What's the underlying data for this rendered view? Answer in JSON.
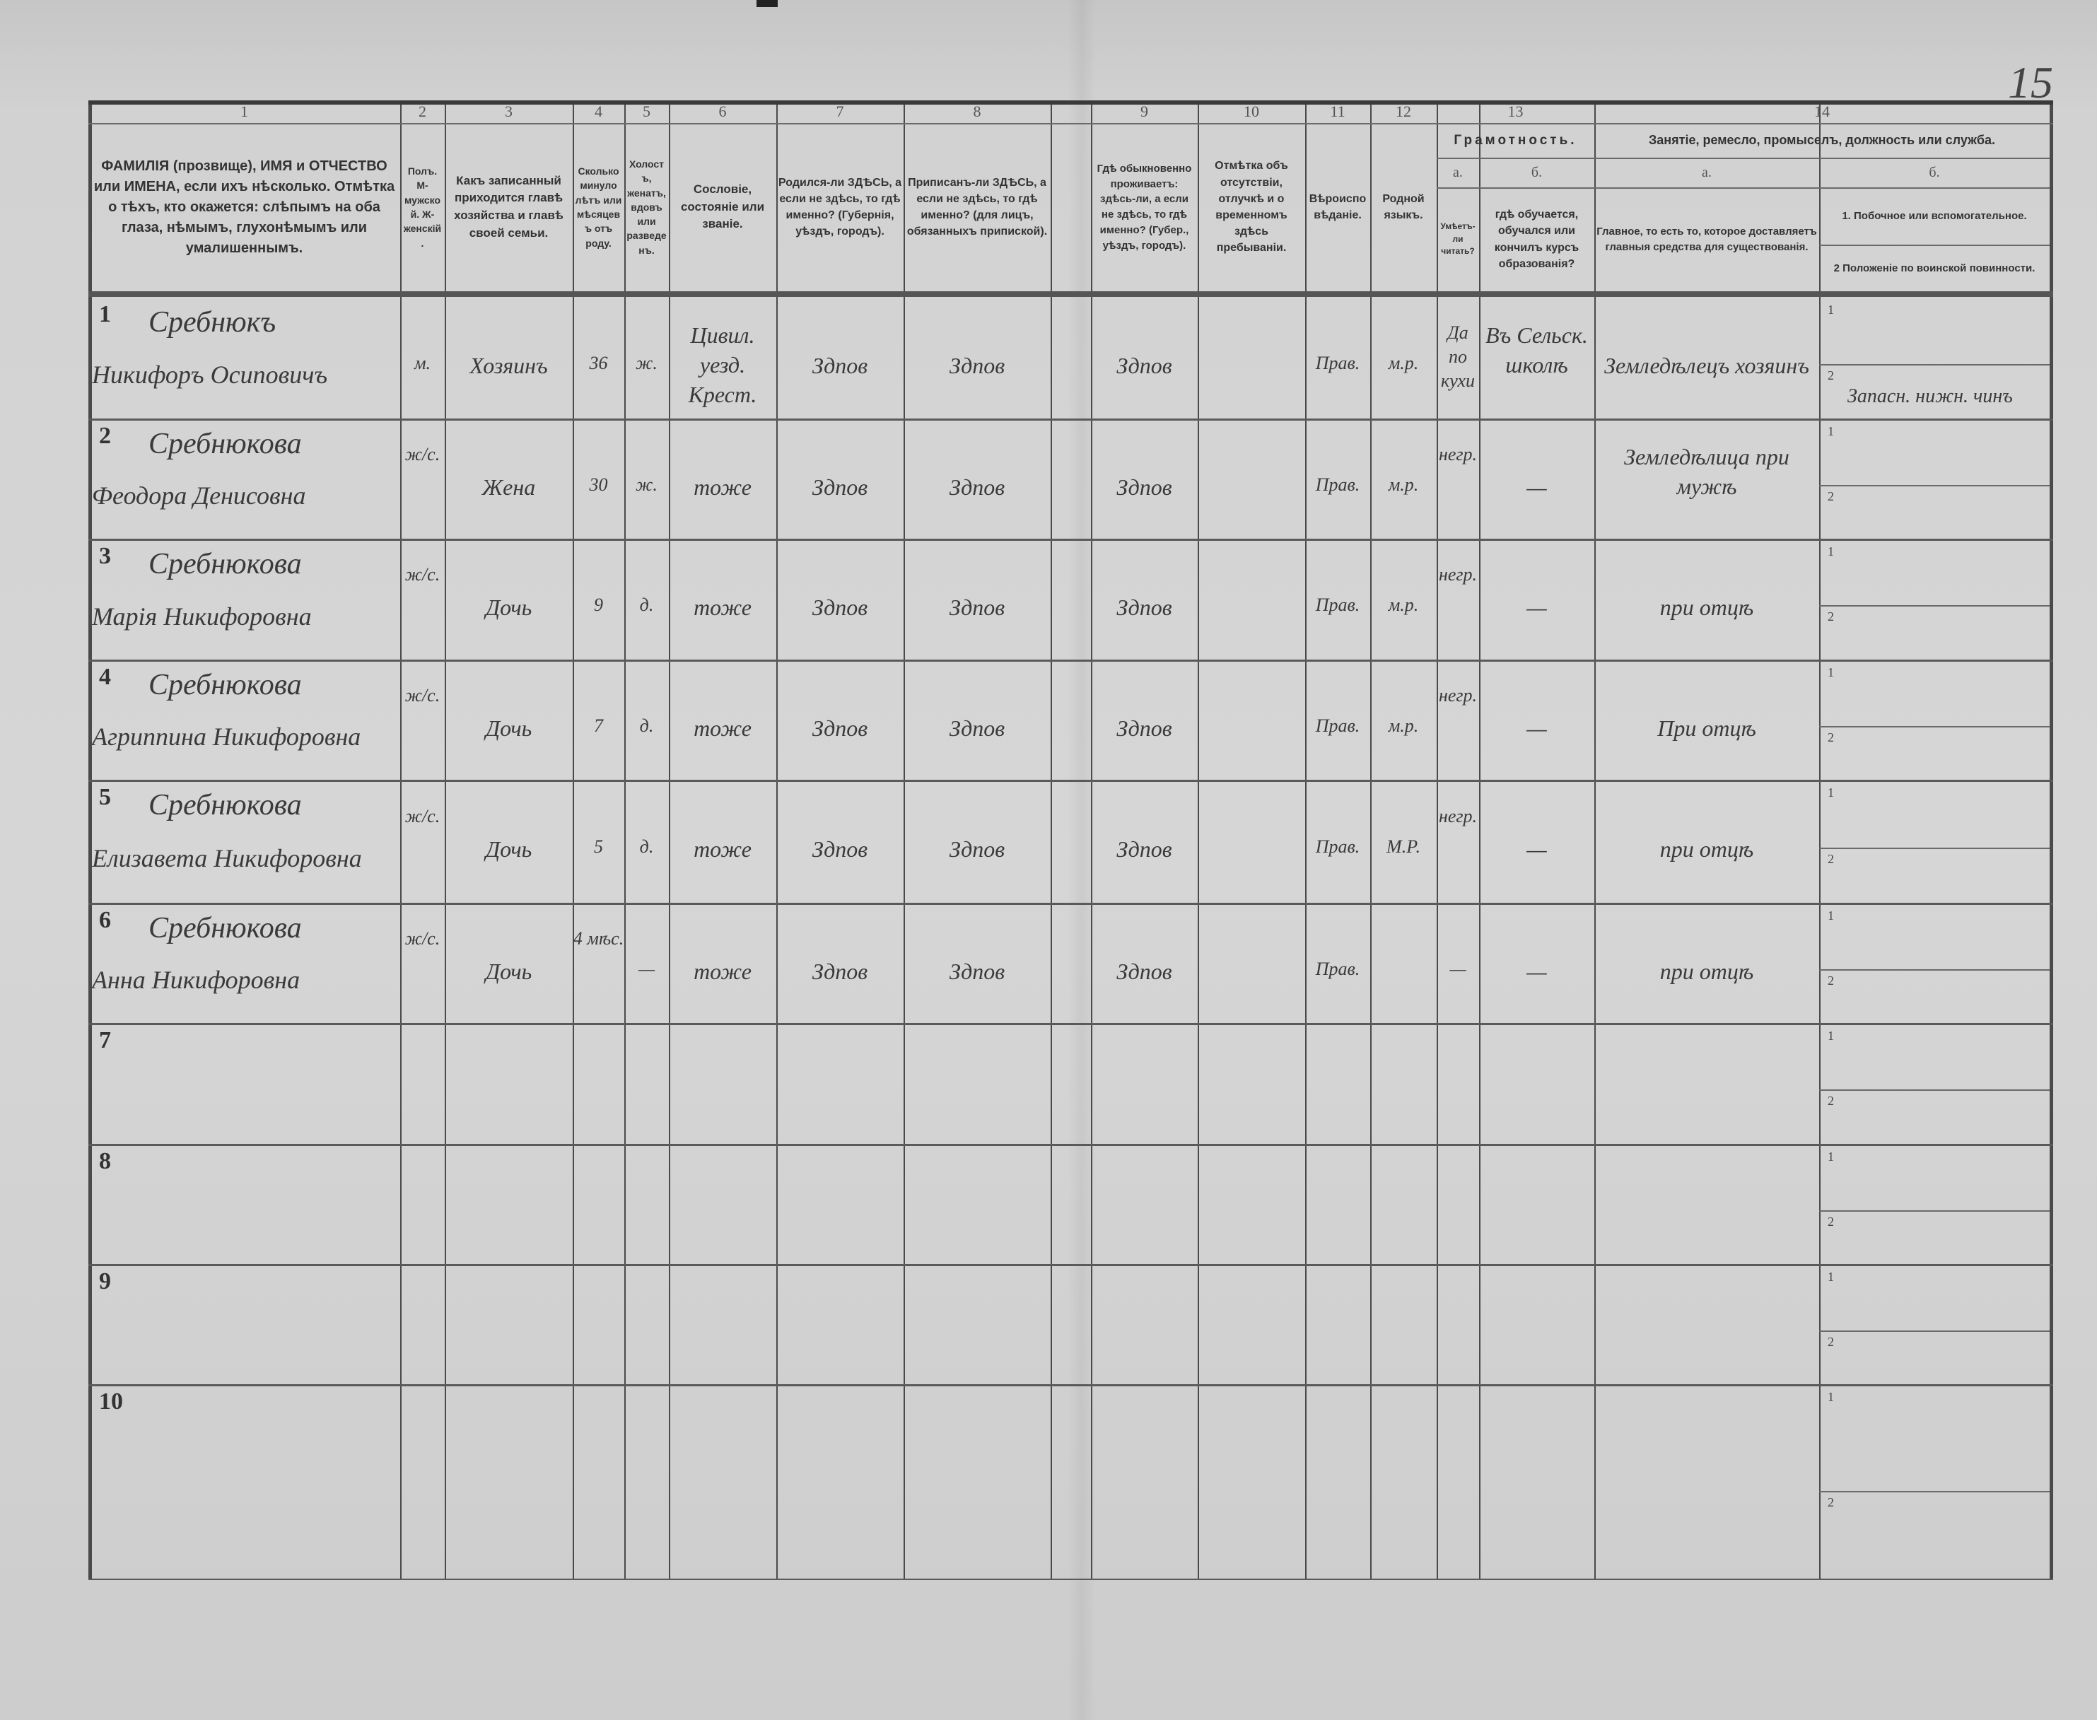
{
  "page_number": "15",
  "header": {
    "numbers": [
      "1",
      "2",
      "3",
      "4",
      "5",
      "6",
      "7",
      "8",
      "9",
      "10",
      "11",
      "12",
      "13",
      "14"
    ],
    "col1": "ФАМИЛІЯ (прозвище), ИМЯ и ОТЧЕСТВО или ИМЕНА, если ихъ нѣсколько. Отмѣтка о тѣхъ, кто окажется: слѣпымъ на оба глаза, нѣмымъ, глухонѣмымъ или умалишеннымъ.",
    "col2": "Полъ. М-мужской. Ж-женскій.",
    "col3": "Какъ записанный приходится главѣ хозяйства и главѣ своей семьи.",
    "col4": "Сколько минуло лѣтъ или мѣсяцевъ отъ роду.",
    "col5": "Холостъ, женатъ, вдовъ или разведенъ.",
    "col6": "Сословіе, состояніе или званіе.",
    "col7": "Родился-ли ЗДѢСЬ, а если не здѣсь, то гдѣ именно? (Губернія, уѣздъ, городъ).",
    "col8": "Приписанъ-ли ЗДѢСЬ, а если не здѣсь, то гдѣ именно? (для лицъ, обязанныхъ припиской).",
    "col9": "Гдѣ обыкновенно проживаетъ: здѣсь-ли, а если не здѣсь, то гдѣ именно? (Губер., уѣздъ, городъ).",
    "col10": "Отмѣтка объ отсутствіи, отлучкѣ и о временномъ здѣсь пребываніи.",
    "col11": "Вѣроисповѣданіе.",
    "col12": "Родной языкъ.",
    "col13": "Грамотность.",
    "col13a_letter": "а.",
    "col13b_letter": "б.",
    "col13a": "Умѣетъ-ли читать?",
    "col13b": "гдѣ обучается, обучался или кончилъ курсъ образованія?",
    "col14": "Занятіе, ремесло, промыселъ, должность или служба.",
    "col14a_letter": "а.",
    "col14b_letter": "б.",
    "col14a": "Главное, то есть то, которое доставляетъ главныя средства для существованія.",
    "col14b_1": "1. Побочное или вспомогательное.",
    "col14b_2": "2 Положеніе по воинской повинности."
  },
  "sub_labels": [
    "1",
    "2"
  ],
  "rows": [
    {
      "n": "1",
      "surname": "Сребнюкъ",
      "given": "Никифоръ Осиповичъ",
      "sex": "м.",
      "relation": "Хозяинъ",
      "age": "36",
      "marital": "ж.",
      "estate": "Цивил. уезд. Крест.",
      "born": "Здпов",
      "registered": "Здпов",
      "resides": "Здпов",
      "absence": "",
      "religion": "Прав.",
      "language": "м.р.",
      "literate": "Да по кухи",
      "education": "Въ Сельск. школѣ",
      "occupation": "Земледѣлецъ хозяинъ",
      "occ_1": "",
      "occ_2": "Запасн. нижн. чинъ"
    },
    {
      "n": "2",
      "surname": "Сребнюкова",
      "given": "Феодора Денисовна",
      "sex": "ж/с.",
      "relation": "Жена",
      "age": "30",
      "marital": "ж.",
      "estate": "тоже",
      "born": "Здпов",
      "registered": "Здпов",
      "resides": "Здпов",
      "absence": "",
      "religion": "Прав.",
      "language": "м.р.",
      "literate": "негр.",
      "education": "—",
      "occupation": "Земледѣлица при мужѣ",
      "occ_1": "",
      "occ_2": ""
    },
    {
      "n": "3",
      "surname": "Сребнюкова",
      "given": "Марія Никифоровна",
      "sex": "ж/с.",
      "relation": "Дочь",
      "age": "9",
      "marital": "д.",
      "estate": "тоже",
      "born": "Здпов",
      "registered": "Здпов",
      "resides": "Здпов",
      "absence": "",
      "religion": "Прав.",
      "language": "м.р.",
      "literate": "негр.",
      "education": "—",
      "occupation": "при отцѣ",
      "occ_1": "",
      "occ_2": ""
    },
    {
      "n": "4",
      "surname": "Сребнюкова",
      "given": "Агриппина Никифоровна",
      "sex": "ж/с.",
      "relation": "Дочь",
      "age": "7",
      "marital": "д.",
      "estate": "тоже",
      "born": "Здпов",
      "registered": "Здпов",
      "resides": "Здпов",
      "absence": "",
      "religion": "Прав.",
      "language": "м.р.",
      "literate": "негр.",
      "education": "—",
      "occupation": "При отцѣ",
      "occ_1": "",
      "occ_2": ""
    },
    {
      "n": "5",
      "surname": "Сребнюкова",
      "given": "Елизавета Никифоровна",
      "sex": "ж/с.",
      "relation": "Дочь",
      "age": "5",
      "marital": "д.",
      "estate": "тоже",
      "born": "Здпов",
      "registered": "Здпов",
      "resides": "Здпов",
      "absence": "",
      "religion": "Прав.",
      "language": "М.Р.",
      "literate": "негр.",
      "education": "—",
      "occupation": "при отцѣ",
      "occ_1": "",
      "occ_2": ""
    },
    {
      "n": "6",
      "surname": "Сребнюкова",
      "given": "Анна Никифоровна",
      "sex": "ж/с.",
      "relation": "Дочь",
      "age": "4 мѣс.",
      "marital": "—",
      "estate": "тоже",
      "born": "Здпов",
      "registered": "Здпов",
      "resides": "Здпов",
      "absence": "",
      "religion": "Прав.",
      "language": "",
      "literate": "—",
      "education": "—",
      "occupation": "при отцѣ",
      "occ_1": "",
      "occ_2": ""
    },
    {
      "n": "7"
    },
    {
      "n": "8"
    },
    {
      "n": "9"
    },
    {
      "n": "10"
    }
  ]
}
